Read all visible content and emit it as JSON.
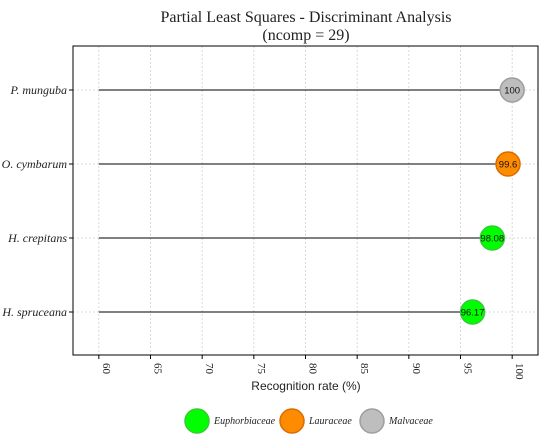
{
  "chart_data": {
    "type": "lollipop",
    "title": "Partial Least Squares - Discriminant Analysis",
    "subtitle": "(ncomp = 29)",
    "xlabel": "Recognition rate (%)",
    "ylabel": "",
    "xlim": [
      57.5,
      102.5
    ],
    "xticks": [
      60,
      65,
      70,
      75,
      80,
      85,
      90,
      95,
      100
    ],
    "stem_start": 60,
    "grid": true,
    "legend_position": "bottom",
    "categories": [
      "P. munguba",
      "O. cymbarum",
      "H. crepitans",
      "H. spruceana"
    ],
    "values": [
      100,
      99.6,
      98.08,
      96.17
    ],
    "data_labels": [
      "100",
      "99.6",
      "98.08",
      "96.17"
    ],
    "groups": [
      "Malvaceae",
      "Lauraceae",
      "Euphorbiaceae",
      "Euphorbiaceae"
    ],
    "legend": [
      {
        "name": "Euphorbiaceae",
        "color": "#00ff00",
        "stroke": "#33cc33"
      },
      {
        "name": "Lauraceae",
        "color": "#ff8c00",
        "stroke": "#d96c00"
      },
      {
        "name": "Malvaceae",
        "color": "#bebebe",
        "stroke": "#9e9e9e"
      }
    ]
  }
}
